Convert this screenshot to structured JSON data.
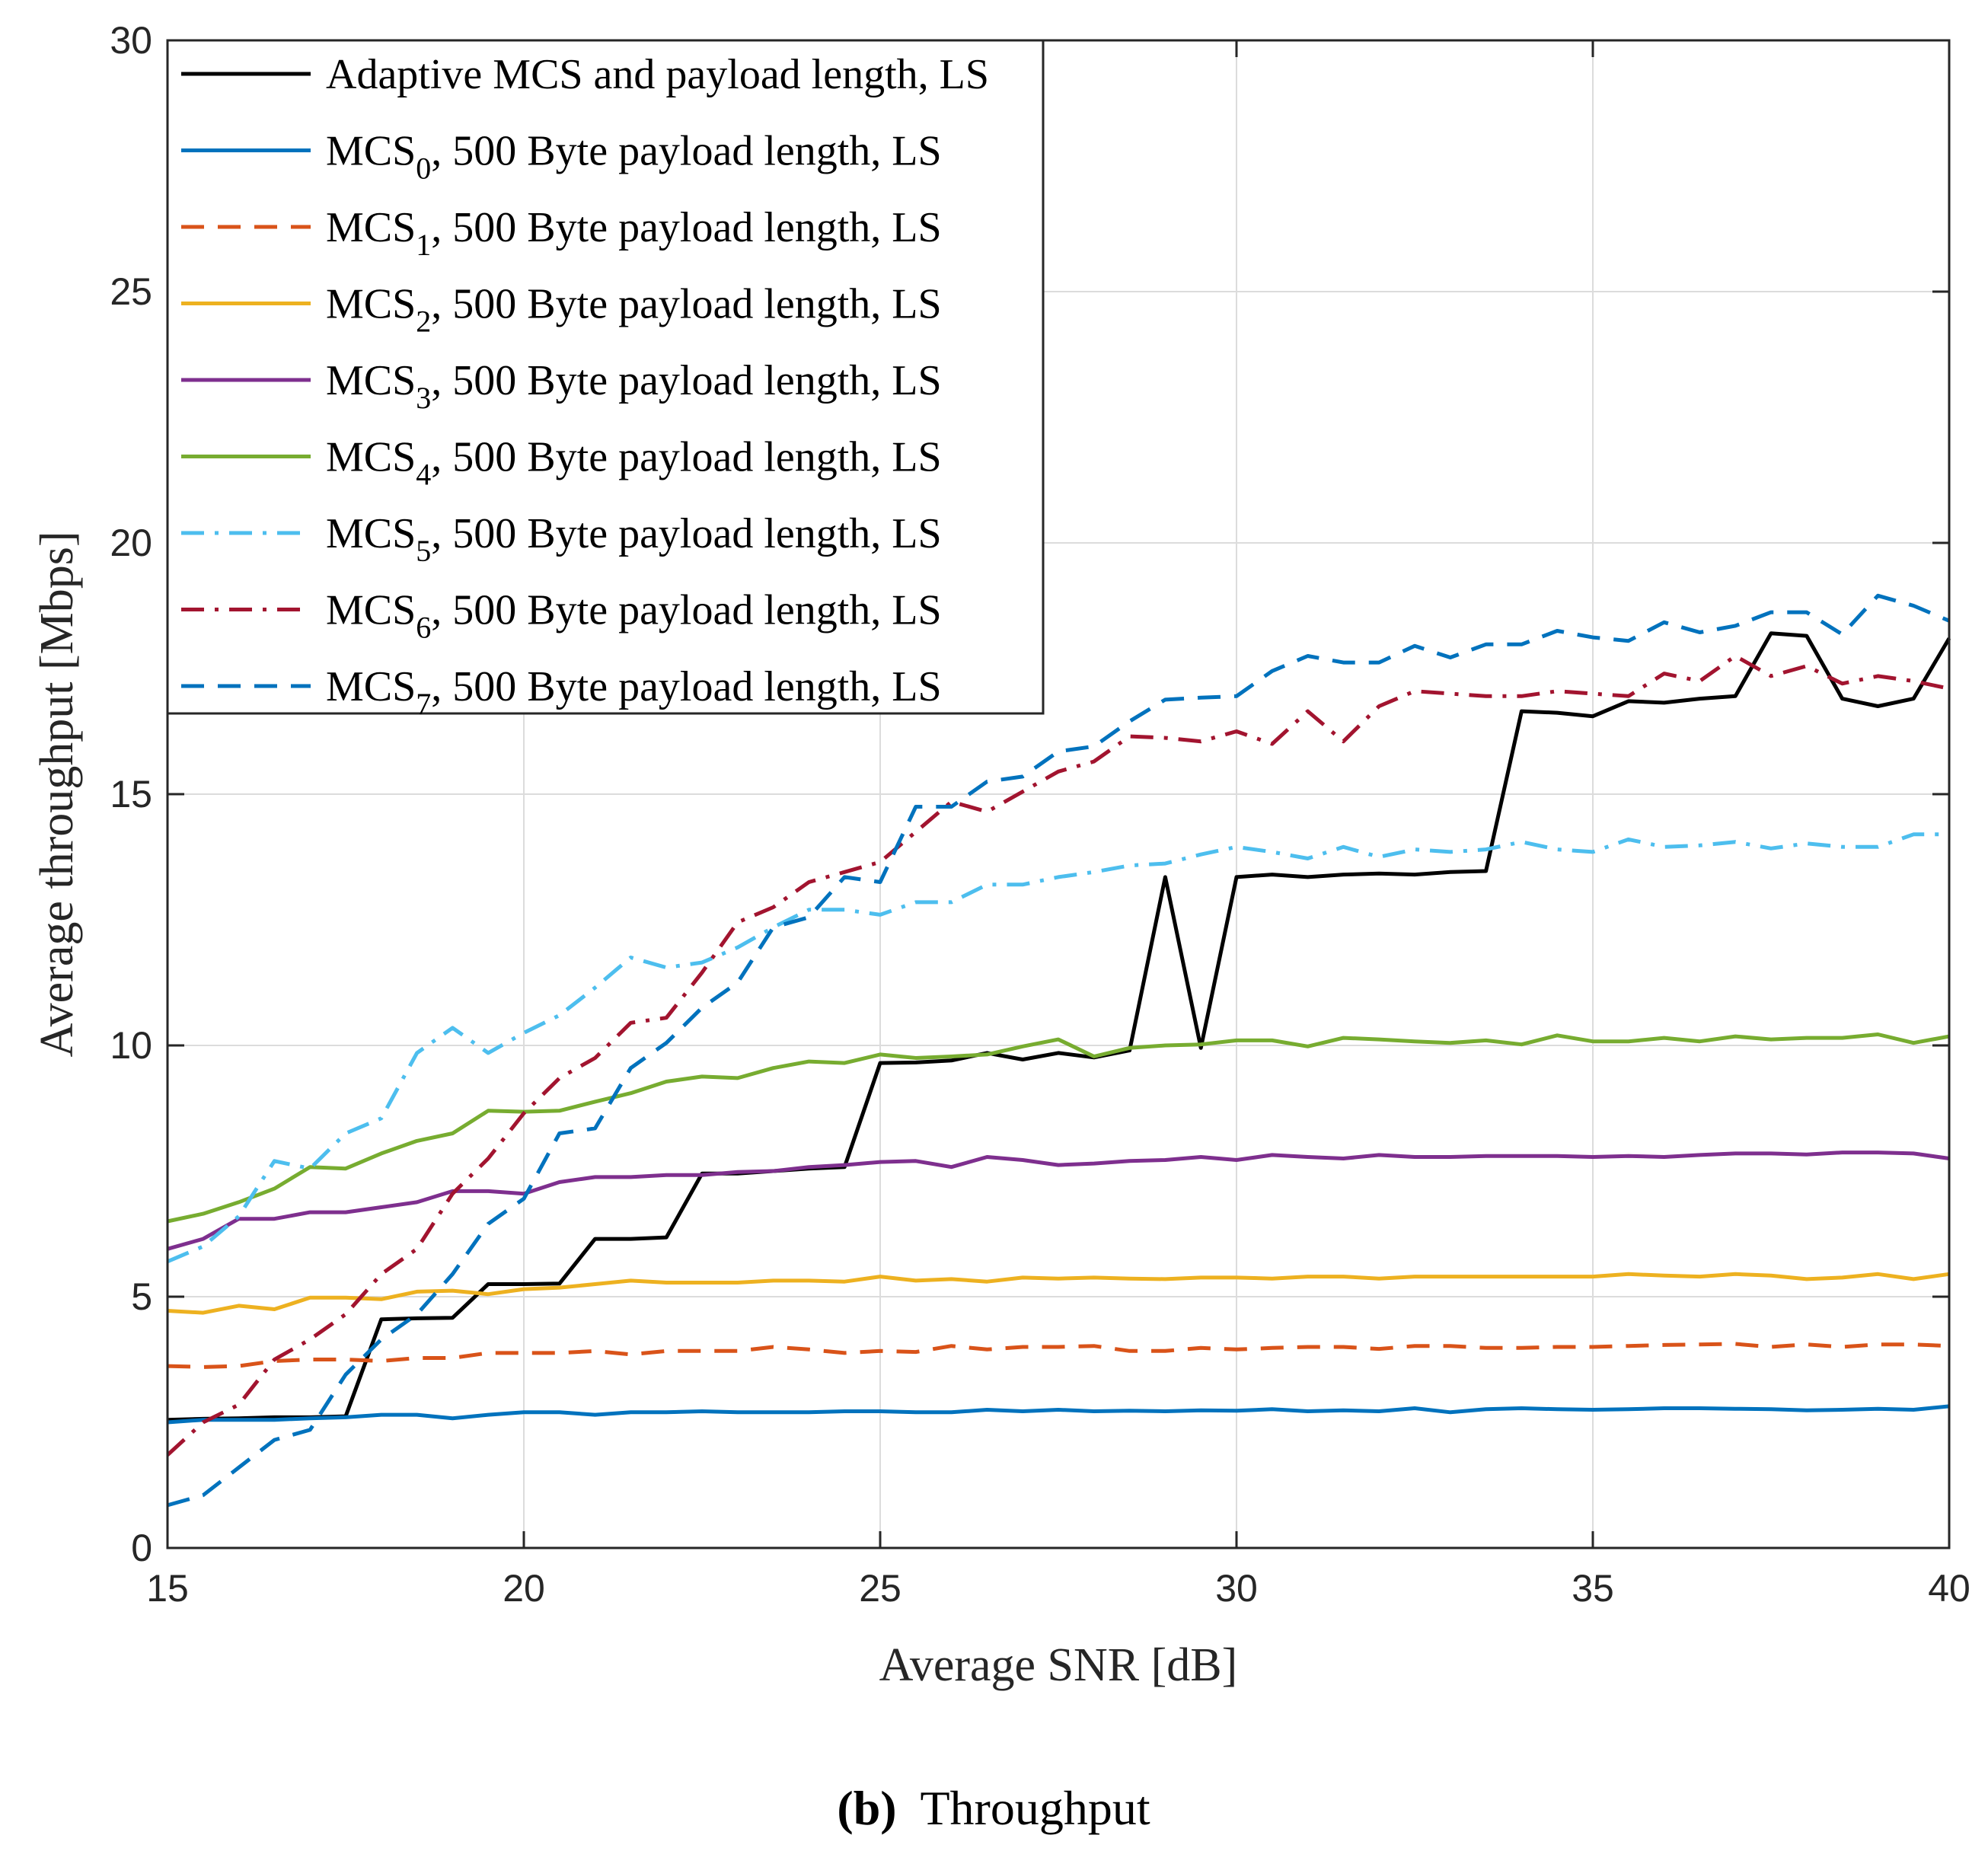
{
  "chart_data": {
    "type": "line",
    "xlabel": "Average SNR [dB]",
    "ylabel": "Average throughput [Mbps]",
    "xlim": [
      15,
      40
    ],
    "ylim": [
      0,
      30
    ],
    "xticks": [
      15,
      20,
      25,
      30,
      35,
      40
    ],
    "yticks": [
      0,
      5,
      10,
      15,
      20,
      25,
      30
    ],
    "grid": true,
    "legend_position": "top-left",
    "x": [
      15,
      15.5,
      16,
      16.5,
      17,
      17.5,
      18,
      18.5,
      19,
      19.5,
      20,
      20.5,
      21,
      21.5,
      22,
      22.5,
      23,
      23.5,
      24,
      24.5,
      25,
      25.5,
      26,
      26.5,
      27,
      27.5,
      28,
      28.5,
      29,
      29.5,
      30,
      30.5,
      31,
      31.5,
      32,
      32.5,
      33,
      33.5,
      34,
      34.5,
      35,
      35.5,
      36,
      36.5,
      37,
      37.5,
      38,
      38.5,
      39,
      39.5,
      40
    ],
    "series": [
      {
        "name": "Adaptive MCS and payload length, LS",
        "color": "#000000",
        "dash": "solid",
        "values": [
          2.55,
          2.57,
          2.58,
          2.6,
          2.6,
          2.62,
          4.55,
          4.57,
          4.58,
          5.25,
          5.25,
          5.26,
          6.15,
          6.15,
          6.18,
          7.45,
          7.45,
          7.5,
          7.55,
          7.58,
          9.65,
          9.66,
          9.7,
          9.85,
          9.72,
          9.85,
          9.76,
          9.9,
          13.35,
          9.95,
          13.35,
          13.4,
          13.35,
          13.4,
          13.42,
          13.4,
          13.45,
          13.47,
          16.65,
          16.62,
          16.55,
          16.85,
          16.82,
          16.9,
          16.95,
          18.2,
          18.15,
          16.9,
          16.75,
          16.9,
          18.1
        ]
      },
      {
        "name": "MCS0, 500 Byte payload length, LS",
        "label_main": "MCS",
        "label_sub": "0",
        "label_rest": ", 500 Byte payload length, LS",
        "color": "#0072BD",
        "dash": "solid",
        "values": [
          2.5,
          2.55,
          2.55,
          2.55,
          2.58,
          2.6,
          2.65,
          2.65,
          2.58,
          2.65,
          2.7,
          2.7,
          2.65,
          2.7,
          2.7,
          2.72,
          2.7,
          2.7,
          2.7,
          2.72,
          2.72,
          2.7,
          2.7,
          2.75,
          2.72,
          2.75,
          2.72,
          2.73,
          2.72,
          2.74,
          2.73,
          2.76,
          2.72,
          2.74,
          2.72,
          2.78,
          2.7,
          2.76,
          2.78,
          2.76,
          2.75,
          2.76,
          2.78,
          2.78,
          2.77,
          2.76,
          2.74,
          2.75,
          2.77,
          2.75,
          2.82
        ]
      },
      {
        "name": "MCS1, 500 Byte payload length, LS",
        "label_main": "MCS",
        "label_sub": "1",
        "label_rest": ", 500 Byte payload length, LS",
        "color": "#D95319",
        "dash": "dashed",
        "values": [
          3.62,
          3.6,
          3.62,
          3.72,
          3.75,
          3.75,
          3.72,
          3.78,
          3.78,
          3.88,
          3.88,
          3.88,
          3.92,
          3.85,
          3.92,
          3.92,
          3.92,
          4.0,
          3.95,
          3.88,
          3.92,
          3.9,
          4.02,
          3.95,
          4.0,
          4.0,
          4.02,
          3.92,
          3.92,
          3.98,
          3.95,
          3.98,
          4.0,
          4.0,
          3.96,
          4.02,
          4.02,
          3.98,
          3.98,
          4.0,
          4.0,
          4.02,
          4.04,
          4.05,
          4.06,
          4.0,
          4.05,
          4.0,
          4.05,
          4.05,
          4.02
        ]
      },
      {
        "name": "MCS2, 500 Byte payload length, LS",
        "label_main": "MCS",
        "label_sub": "2",
        "label_rest": ", 500 Byte payload length, LS",
        "color": "#EDB120",
        "dash": "solid",
        "values": [
          4.72,
          4.68,
          4.82,
          4.75,
          4.98,
          4.98,
          4.95,
          5.1,
          5.12,
          5.05,
          5.15,
          5.18,
          5.25,
          5.32,
          5.28,
          5.28,
          5.28,
          5.32,
          5.32,
          5.3,
          5.4,
          5.32,
          5.35,
          5.3,
          5.38,
          5.36,
          5.38,
          5.36,
          5.35,
          5.38,
          5.38,
          5.36,
          5.4,
          5.4,
          5.36,
          5.4,
          5.4,
          5.4,
          5.4,
          5.4,
          5.4,
          5.45,
          5.42,
          5.4,
          5.45,
          5.42,
          5.35,
          5.38,
          5.45,
          5.35,
          5.45
        ]
      },
      {
        "name": "MCS3, 500 Byte payload length, LS",
        "label_main": "MCS",
        "label_sub": "3",
        "label_rest": ", 500 Byte payload length, LS",
        "color": "#7E2F8E",
        "dash": "solid",
        "values": [
          5.95,
          6.15,
          6.55,
          6.55,
          6.68,
          6.68,
          6.78,
          6.88,
          7.1,
          7.1,
          7.05,
          7.28,
          7.38,
          7.38,
          7.42,
          7.42,
          7.48,
          7.5,
          7.58,
          7.62,
          7.68,
          7.7,
          7.58,
          7.78,
          7.72,
          7.62,
          7.65,
          7.7,
          7.72,
          7.78,
          7.72,
          7.82,
          7.78,
          7.75,
          7.82,
          7.78,
          7.78,
          7.8,
          7.8,
          7.8,
          7.78,
          7.8,
          7.78,
          7.82,
          7.85,
          7.85,
          7.83,
          7.87,
          7.87,
          7.85,
          7.75
        ]
      },
      {
        "name": "MCS4, 500 Byte payload length, LS",
        "label_main": "MCS",
        "label_sub": "4",
        "label_rest": ", 500 Byte payload length, LS",
        "color": "#77AC30",
        "dash": "solid",
        "values": [
          6.5,
          6.65,
          6.88,
          7.15,
          7.58,
          7.55,
          7.85,
          8.1,
          8.25,
          8.7,
          8.68,
          8.7,
          8.88,
          9.05,
          9.28,
          9.38,
          9.35,
          9.55,
          9.68,
          9.65,
          9.82,
          9.75,
          9.78,
          9.82,
          9.98,
          10.12,
          9.78,
          9.95,
          10.0,
          10.02,
          10.1,
          10.1,
          9.98,
          10.15,
          10.12,
          10.08,
          10.05,
          10.1,
          10.02,
          10.2,
          10.08,
          10.08,
          10.15,
          10.08,
          10.18,
          10.12,
          10.15,
          10.15,
          10.22,
          10.05,
          10.18
        ]
      },
      {
        "name": "MCS5, 500 Byte payload length, LS",
        "label_main": "MCS",
        "label_sub": "5",
        "label_rest": ", 500 Byte payload length, LS",
        "color": "#4DBEEE",
        "dash": "dashdot",
        "values": [
          5.7,
          6.0,
          6.6,
          7.7,
          7.55,
          8.25,
          8.55,
          9.85,
          10.35,
          9.85,
          10.25,
          10.6,
          11.15,
          11.75,
          11.55,
          11.65,
          11.95,
          12.35,
          12.7,
          12.7,
          12.6,
          12.85,
          12.85,
          13.2,
          13.2,
          13.35,
          13.45,
          13.58,
          13.62,
          13.8,
          13.95,
          13.85,
          13.72,
          13.95,
          13.75,
          13.9,
          13.85,
          13.9,
          14.05,
          13.9,
          13.85,
          14.1,
          13.95,
          13.98,
          14.05,
          13.92,
          14.02,
          13.95,
          13.95,
          14.2,
          14.2
        ]
      },
      {
        "name": "MCS6, 500 Byte payload length, LS",
        "label_main": "MCS",
        "label_sub": "6",
        "label_rest": ", 500 Byte payload length, LS",
        "color": "#A2142F",
        "dash": "dashdot",
        "values": [
          1.85,
          2.5,
          2.85,
          3.75,
          4.15,
          4.65,
          5.45,
          5.95,
          7.05,
          7.75,
          8.65,
          9.35,
          9.75,
          10.45,
          10.55,
          11.45,
          12.45,
          12.75,
          13.25,
          13.45,
          13.65,
          14.25,
          14.85,
          14.65,
          15.05,
          15.45,
          15.65,
          16.15,
          16.12,
          16.05,
          16.25,
          16.0,
          16.65,
          16.05,
          16.75,
          17.05,
          17.0,
          16.95,
          16.95,
          17.05,
          17.0,
          16.95,
          17.4,
          17.25,
          17.75,
          17.35,
          17.55,
          17.2,
          17.35,
          17.25,
          17.1
        ]
      },
      {
        "name": "MCS7, 500 Byte payload length, LS",
        "label_main": "MCS",
        "label_sub": "7",
        "label_rest": ", 500 Byte payload length, LS",
        "color": "#0072BD",
        "dash": "dashed",
        "values": [
          0.85,
          1.05,
          1.6,
          2.15,
          2.35,
          3.45,
          4.15,
          4.65,
          5.45,
          6.45,
          6.95,
          8.25,
          8.35,
          9.55,
          10.05,
          10.75,
          11.25,
          12.35,
          12.55,
          13.35,
          13.25,
          14.75,
          14.75,
          15.25,
          15.35,
          15.85,
          15.95,
          16.45,
          16.88,
          16.92,
          16.95,
          17.45,
          17.75,
          17.62,
          17.62,
          17.95,
          17.72,
          17.98,
          17.98,
          18.25,
          18.12,
          18.05,
          18.42,
          18.22,
          18.35,
          18.62,
          18.62,
          18.18,
          18.95,
          18.75,
          18.45
        ]
      }
    ]
  },
  "caption": {
    "letter": "(b)",
    "text": "Throughput"
  }
}
